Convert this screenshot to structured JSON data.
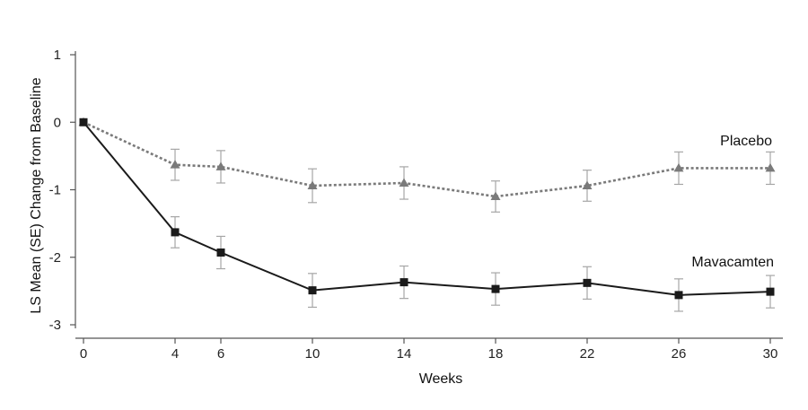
{
  "chart_data": {
    "type": "line",
    "title": "",
    "xlabel": "Weeks",
    "ylabel": "LS Mean (SE) Change from Baseline",
    "x": [
      0,
      4,
      6,
      10,
      14,
      18,
      22,
      26,
      30
    ],
    "x_ticks": [
      "0",
      "4",
      "6",
      "10",
      "14",
      "18",
      "22",
      "26",
      "30"
    ],
    "y_ticks": [
      "1",
      "0",
      "-1",
      "-2",
      "-3"
    ],
    "xlim": [
      0,
      30
    ],
    "ylim": [
      -3,
      1
    ],
    "grid": false,
    "legend": "none (direct labels)",
    "series": [
      {
        "name": "Placebo",
        "values": [
          0,
          -0.63,
          -0.66,
          -0.94,
          -0.9,
          -1.1,
          -0.94,
          -0.68,
          -0.68
        ],
        "se": [
          0,
          0.23,
          0.24,
          0.25,
          0.24,
          0.23,
          0.23,
          0.24,
          0.24
        ],
        "color": "#7a7a7a",
        "line_style": "dotted",
        "marker": "triangle"
      },
      {
        "name": "Mavacamten",
        "values": [
          0,
          -1.63,
          -1.93,
          -2.49,
          -2.37,
          -2.47,
          -2.38,
          -2.56,
          -2.51
        ],
        "se": [
          0,
          0.23,
          0.24,
          0.25,
          0.24,
          0.24,
          0.24,
          0.24,
          0.24
        ],
        "color": "#1a1a1a",
        "line_style": "solid",
        "marker": "square"
      }
    ]
  }
}
